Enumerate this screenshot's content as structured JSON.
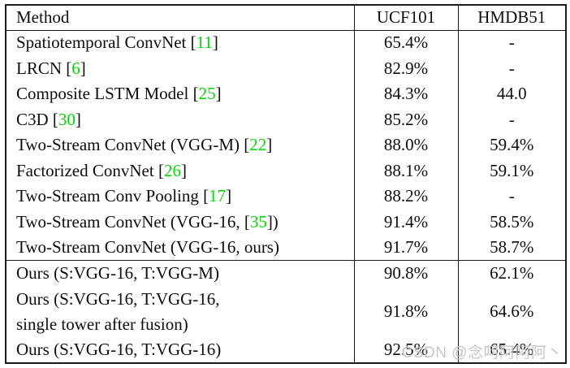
{
  "colors": {
    "ref_green": "#00dd00",
    "watermark": "#c9c4c4"
  },
  "watermark": {
    "text": "CSDN @念呵阿阿阿丶"
  },
  "table": {
    "header": {
      "method": "Method",
      "ucf": "UCF101",
      "hmdb": "HMDB51"
    },
    "rows": [
      {
        "method_prefix": "Spatiotemporal ConvNet [",
        "method_ref": "11",
        "method_suffix": "]",
        "ucf": "65.4%",
        "hmdb": "-"
      },
      {
        "method_prefix": "LRCN [",
        "method_ref": "6",
        "method_suffix": "]",
        "ucf": "82.9%",
        "hmdb": "-"
      },
      {
        "method_prefix": "Composite LSTM Model [",
        "method_ref": "25",
        "method_suffix": "]",
        "ucf": "84.3%",
        "hmdb": "44.0"
      },
      {
        "method_prefix": "C3D [",
        "method_ref": "30",
        "method_suffix": "]",
        "ucf": "85.2%",
        "hmdb": "-"
      },
      {
        "method_prefix": "Two-Stream ConvNet (VGG-M) [",
        "method_ref": "22",
        "method_suffix": "]",
        "ucf": "88.0%",
        "hmdb": "59.4%"
      },
      {
        "method_prefix": "Factorized ConvNet [",
        "method_ref": "26",
        "method_suffix": "]",
        "ucf": "88.1%",
        "hmdb": "59.1%"
      },
      {
        "method_prefix": "Two-Stream Conv Pooling [",
        "method_ref": "17",
        "method_suffix": "]",
        "ucf": "88.2%",
        "hmdb": "-"
      },
      {
        "method_prefix": "Two-Stream ConvNet (VGG-16, [",
        "method_ref": "35",
        "method_suffix": "])",
        "ucf": "91.4%",
        "hmdb": "58.5%"
      },
      {
        "method_prefix": "Two-Stream ConvNet (VGG-16, ours)",
        "method_ref": "",
        "method_suffix": "",
        "ucf": "91.7%",
        "hmdb": "58.7%"
      },
      {
        "method_prefix": "Ours (S:VGG-16, T:VGG-M)",
        "method_ref": "",
        "method_suffix": "",
        "ucf": "90.8%",
        "hmdb": "62.1%"
      },
      {
        "method_line1": "Ours (S:VGG-16, T:VGG-16,",
        "method_line2": "single tower after fusion)",
        "ucf": "91.8%",
        "hmdb": "64.6%"
      },
      {
        "method_prefix": "Ours (S:VGG-16, T:VGG-16)",
        "method_ref": "",
        "method_suffix": "",
        "ucf": "92.5%",
        "hmdb": "65.4%"
      }
    ]
  }
}
